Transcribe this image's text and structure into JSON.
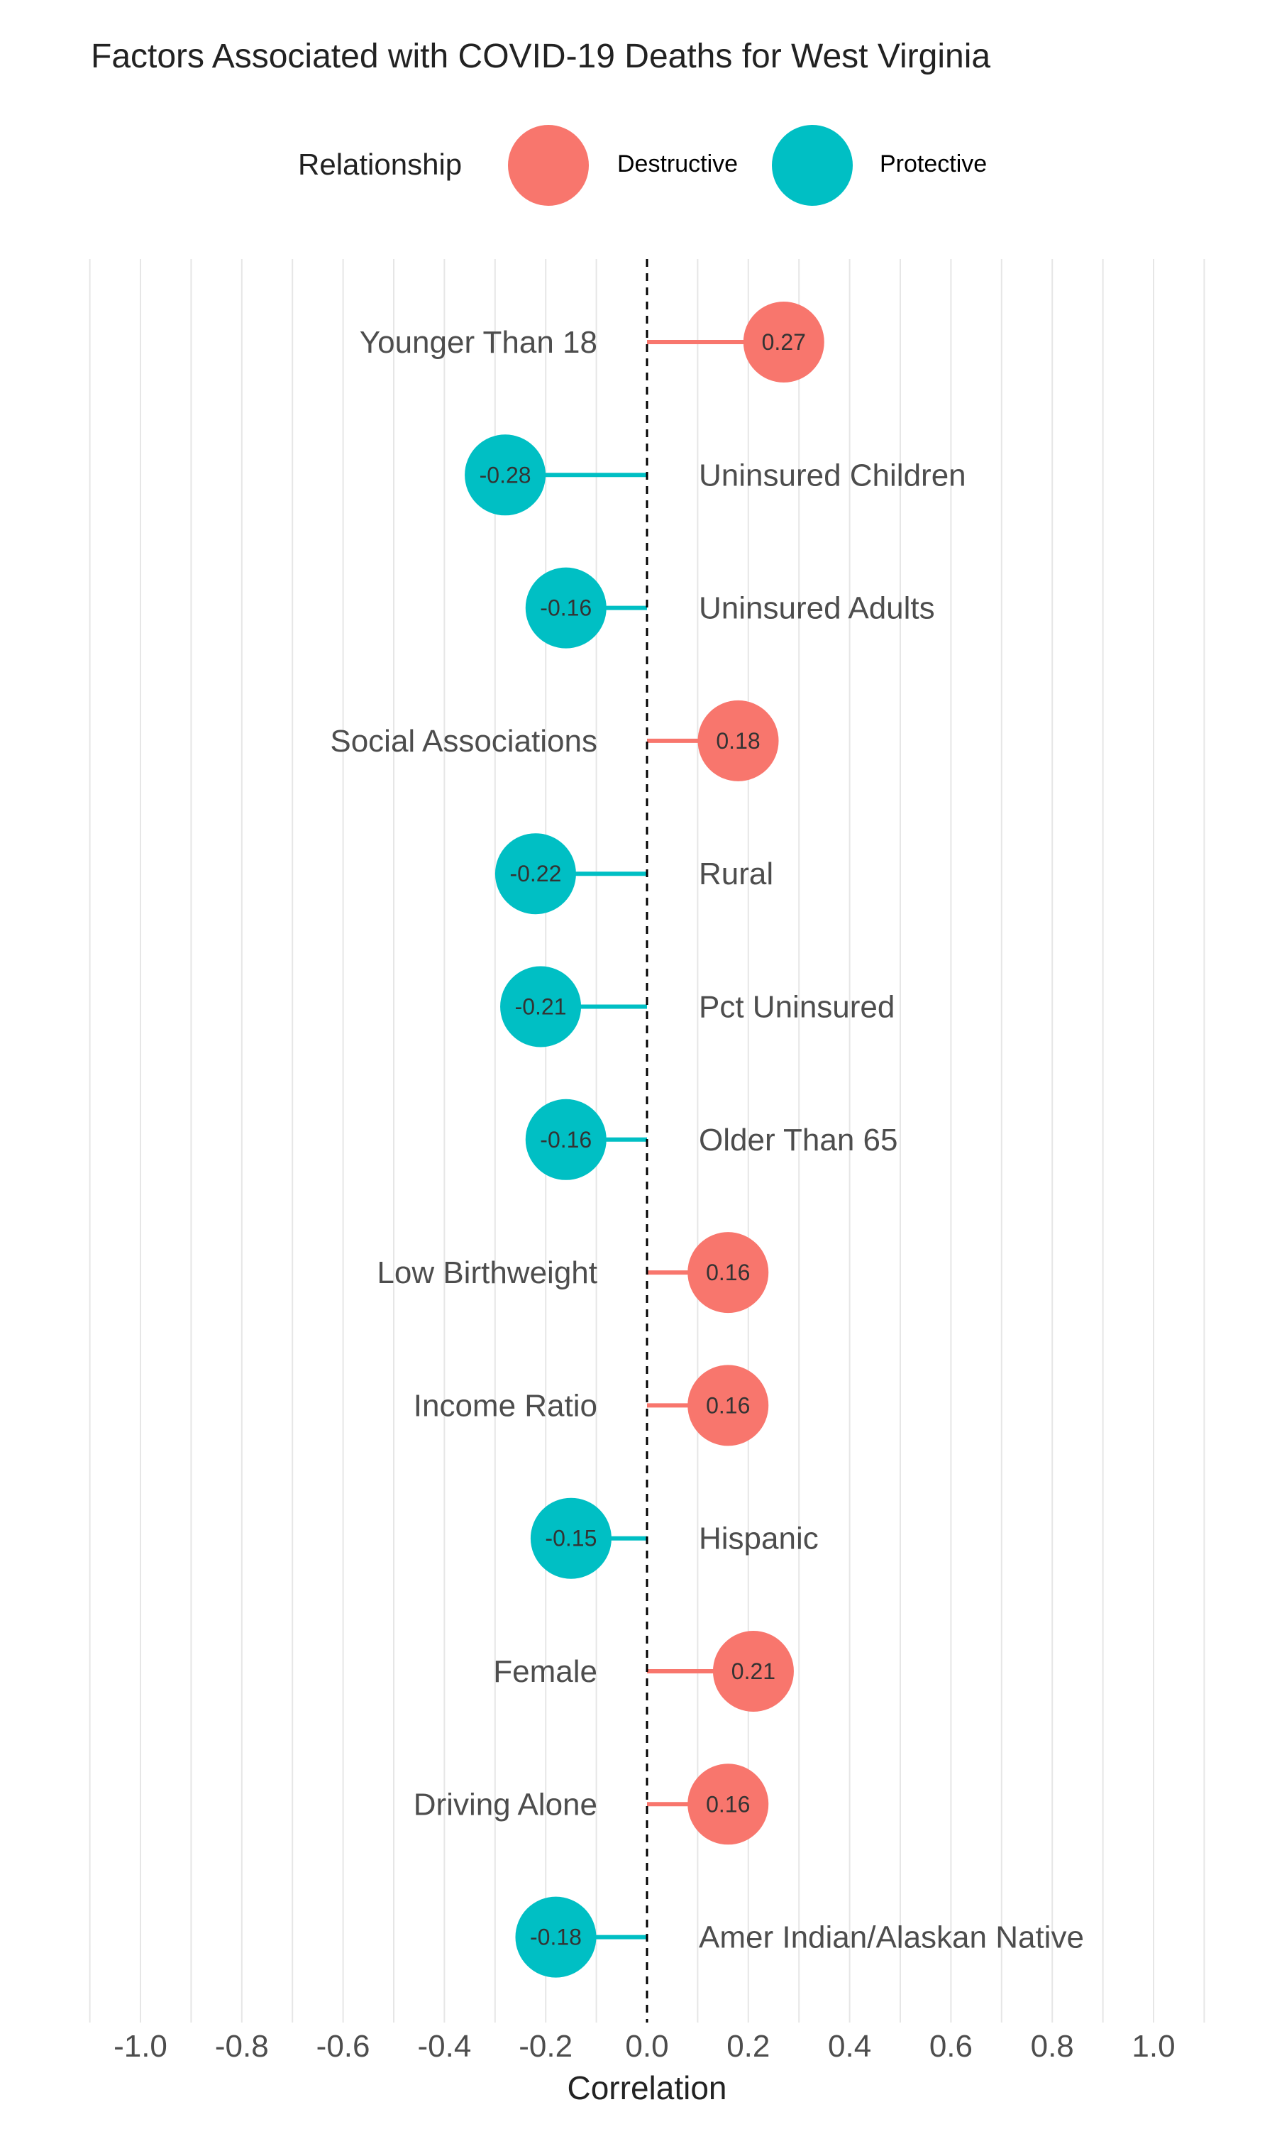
{
  "title": "Factors Associated with COVID-19 Deaths for West Virginia",
  "legend": {
    "title": "Relationship",
    "items": [
      {
        "label": "Destructive",
        "color": "#F8766D"
      },
      {
        "label": "Protective",
        "color": "#00BFC4"
      }
    ]
  },
  "chart_data": {
    "type": "lollipop",
    "title": "Factors Associated with COVID-19 Deaths for West Virginia",
    "xlabel": "Correlation",
    "ylabel": "",
    "xlim": [
      -1.1,
      1.1
    ],
    "xticks": [
      "-1.0",
      "-0.8",
      "-0.6",
      "-0.4",
      "-0.2",
      "0.0",
      "0.2",
      "0.4",
      "0.6",
      "0.8",
      "1.0"
    ],
    "grid": true,
    "legend_position": "top",
    "points": [
      {
        "factor": "Younger Than 18",
        "value": 0.27,
        "label": "0.27",
        "relationship": "Destructive"
      },
      {
        "factor": "Uninsured Children",
        "value": -0.28,
        "label": "-0.28",
        "relationship": "Protective"
      },
      {
        "factor": "Uninsured Adults",
        "value": -0.16,
        "label": "-0.16",
        "relationship": "Protective"
      },
      {
        "factor": "Social Associations",
        "value": 0.18,
        "label": "0.18",
        "relationship": "Destructive"
      },
      {
        "factor": "Rural",
        "value": -0.22,
        "label": "-0.22",
        "relationship": "Protective"
      },
      {
        "factor": "Pct Uninsured",
        "value": -0.21,
        "label": "-0.21",
        "relationship": "Protective"
      },
      {
        "factor": "Older Than 65",
        "value": -0.16,
        "label": "-0.16",
        "relationship": "Protective"
      },
      {
        "factor": "Low Birthweight",
        "value": 0.16,
        "label": "0.16",
        "relationship": "Destructive"
      },
      {
        "factor": "Income Ratio",
        "value": 0.16,
        "label": "0.16",
        "relationship": "Destructive"
      },
      {
        "factor": "Hispanic",
        "value": -0.15,
        "label": "-0.15",
        "relationship": "Protective"
      },
      {
        "factor": "Female",
        "value": 0.21,
        "label": "0.21",
        "relationship": "Destructive"
      },
      {
        "factor": "Driving Alone",
        "value": 0.16,
        "label": "0.16",
        "relationship": "Destructive"
      },
      {
        "factor": "Amer Indian/Alaskan Native",
        "value": -0.18,
        "label": "-0.18",
        "relationship": "Protective"
      }
    ]
  }
}
